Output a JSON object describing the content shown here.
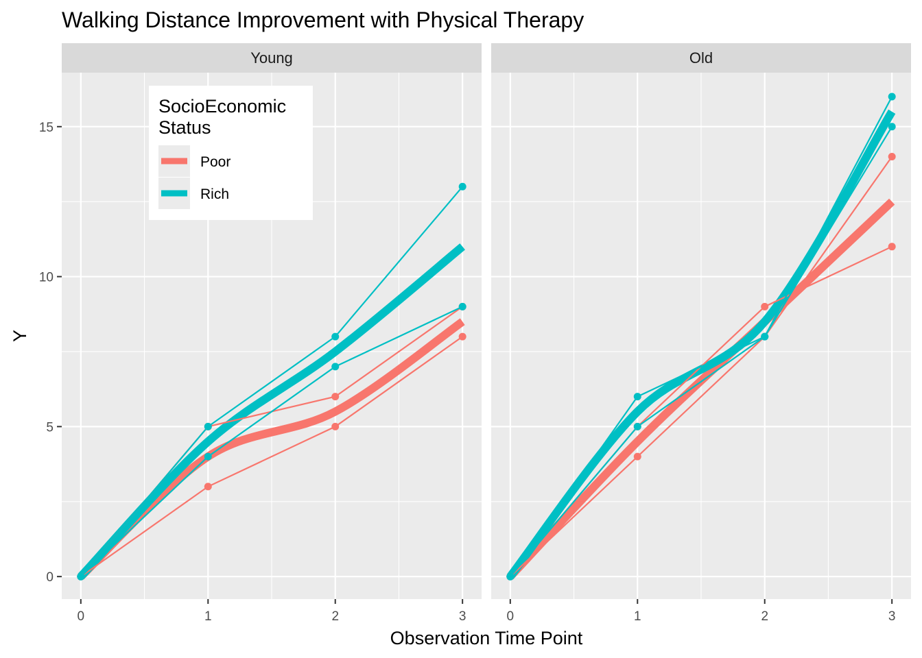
{
  "chart_data": {
    "type": "line",
    "title": "Walking Distance Improvement with Physical Therapy",
    "xlabel": "Observation Time Point",
    "ylabel": "Y",
    "x_ticks": [
      0,
      1,
      2,
      3
    ],
    "y_ticks": [
      0,
      5,
      10,
      15
    ],
    "xlim": [
      -0.15,
      3.15
    ],
    "ylim": [
      -0.75,
      16.8
    ],
    "grid": true,
    "legend": {
      "title_line1": "SocioEconomic",
      "title_line2": "Status",
      "placement": "top-left",
      "entries": [
        {
          "label": "Poor",
          "color": "#F8766D"
        },
        {
          "label": "Rich",
          "color": "#00BFC4"
        }
      ]
    },
    "panels": [
      {
        "label": "Young",
        "individuals": [
          {
            "group": "Poor",
            "x": [
              0,
              1,
              2,
              3
            ],
            "y": [
              0,
              3,
              5,
              8
            ]
          },
          {
            "group": "Poor",
            "x": [
              0,
              1,
              2,
              3
            ],
            "y": [
              0,
              5,
              6,
              9
            ]
          },
          {
            "group": "Rich",
            "x": [
              0,
              1,
              2,
              3
            ],
            "y": [
              0,
              5,
              8,
              13
            ]
          },
          {
            "group": "Rich",
            "x": [
              0,
              1,
              2,
              3
            ],
            "y": [
              0,
              4,
              7,
              9
            ]
          }
        ],
        "smooth": [
          {
            "group": "Poor",
            "x": [
              0,
              1,
              2,
              3
            ],
            "y": [
              0,
              4,
              5.5,
              8.5
            ]
          },
          {
            "group": "Rich",
            "x": [
              0,
              1,
              2,
              3
            ],
            "y": [
              0,
              4.5,
              7.5,
              11
            ]
          }
        ]
      },
      {
        "label": "Old",
        "individuals": [
          {
            "group": "Poor",
            "x": [
              0,
              1,
              2,
              3
            ],
            "y": [
              0,
              4,
              8,
              14
            ]
          },
          {
            "group": "Poor",
            "x": [
              0,
              1,
              2,
              3
            ],
            "y": [
              0,
              5,
              9,
              11
            ]
          },
          {
            "group": "Rich",
            "x": [
              0,
              1,
              2,
              3
            ],
            "y": [
              0,
              6,
              8,
              16
            ]
          },
          {
            "group": "Rich",
            "x": [
              0,
              1,
              2,
              3
            ],
            "y": [
              0,
              5,
              8,
              15
            ]
          }
        ],
        "smooth": [
          {
            "group": "Poor",
            "x": [
              0,
              1,
              2,
              3
            ],
            "y": [
              0,
              4.5,
              8.5,
              12.5
            ]
          },
          {
            "group": "Rich",
            "x": [
              0,
              1,
              2,
              3
            ],
            "y": [
              0,
              5.5,
              8.5,
              15.5
            ]
          }
        ]
      }
    ]
  }
}
